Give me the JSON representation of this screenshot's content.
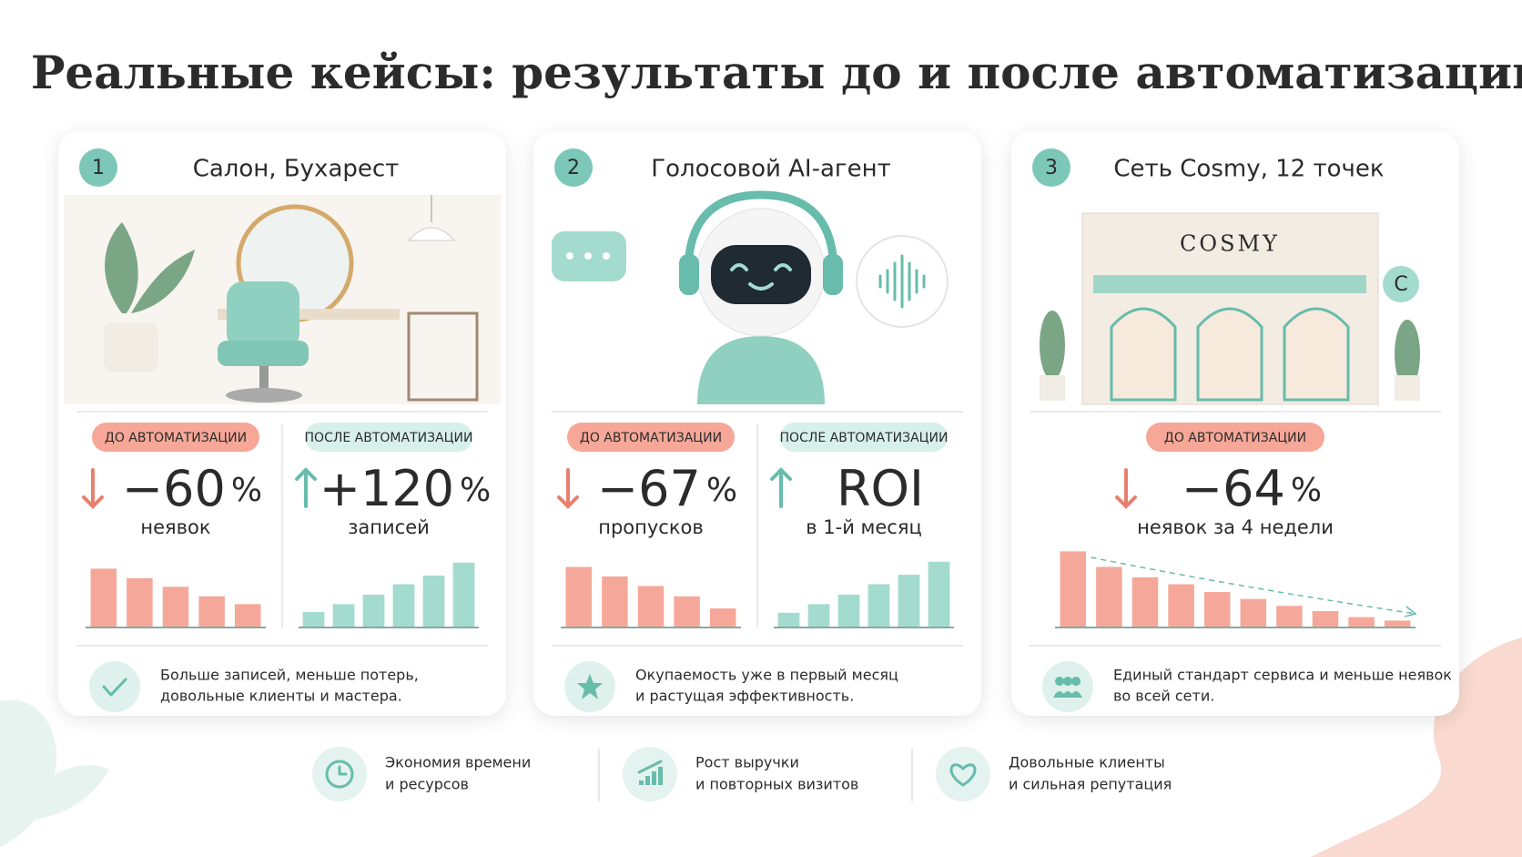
{
  "title": "Реальные кейсы: результаты до и после автоматизации",
  "cases": [
    {
      "number": "1",
      "title": "Салон, Бухарест",
      "panels": [
        {
          "badge": "ДО АВТОМАТИЗАЦИИ",
          "arrow": "down",
          "value": "−60",
          "unit": "%",
          "label": "неявок",
          "bars": [
            68,
            57,
            47,
            36,
            27
          ]
        },
        {
          "badge": "ПОСЛЕ АВТОМАТИЗАЦИИ",
          "arrow": "up",
          "value": "+120",
          "unit": "%",
          "label": "записей",
          "bars": [
            18,
            27,
            38,
            50,
            60,
            75
          ]
        }
      ],
      "footer": [
        "Больше записей, меньше потерь,",
        "довольные клиенты и мастера."
      ]
    },
    {
      "number": "2",
      "title": "Голосовой AI-агент",
      "panels": [
        {
          "badge": "ДО АВТОМАТИЗАЦИИ",
          "arrow": "down",
          "value": "−67",
          "unit": "%",
          "label": "пропусков",
          "bars": [
            70,
            59,
            48,
            36,
            22
          ]
        },
        {
          "badge": "ПОСЛЕ АВТОМАТИЗАЦИИ",
          "arrow": "up",
          "value": "ROI",
          "label": "в 1-й месяц",
          "bars": [
            17,
            27,
            38,
            50,
            61,
            76
          ]
        }
      ],
      "footer": [
        "Окупаемость уже в первый месяц",
        "и растущая эффективность."
      ]
    },
    {
      "number": "3",
      "title": "Сеть Cosmy, 12 точек",
      "sign": "COSMY",
      "logo": "C",
      "panels": [
        {
          "badge": "ДО АВТОМАТИЗАЦИИ",
          "arrow": "down",
          "value": "−64",
          "unit": "%",
          "label": "неявок за 4 недели",
          "bars": [
            88,
            70,
            58,
            50,
            41,
            33,
            25,
            19,
            12,
            8
          ]
        }
      ],
      "footer": [
        "Единый стандарт сервиса и меньше неявок",
        "во всей сети."
      ]
    }
  ],
  "benefits": [
    {
      "lines": [
        "Экономия времени",
        "и ресурсов"
      ]
    },
    {
      "lines": [
        "Рост выручки",
        "и повторных визитов"
      ]
    },
    {
      "lines": [
        "Довольные клиенты",
        "и сильная репутация"
      ]
    }
  ]
}
